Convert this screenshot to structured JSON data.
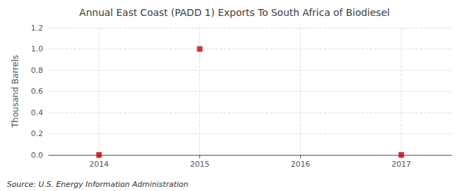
{
  "chart_data": {
    "type": "scatter",
    "title": "Annual East Coast (PADD 1) Exports To South Africa of Biodiesel",
    "ylabel": "Thousand Barrels",
    "annotations": [
      "Source: U.S. Energy Information Administration"
    ],
    "x": [
      2014,
      2015,
      2017
    ],
    "values": [
      0,
      1.0,
      0
    ],
    "color": "#cc0000",
    "marker": "square",
    "xlim": [
      2013.5,
      2017.5
    ],
    "xticks": [
      2014,
      2015,
      2016,
      2017
    ],
    "ylim": [
      0,
      1.2
    ],
    "yticks": [
      {
        "value": 0.0,
        "label": "0.0"
      },
      0.2,
      0.4,
      0.6,
      0.8,
      {
        "value": 1.0,
        "label": "1.0"
      },
      1.2
    ],
    "grid": true
  }
}
